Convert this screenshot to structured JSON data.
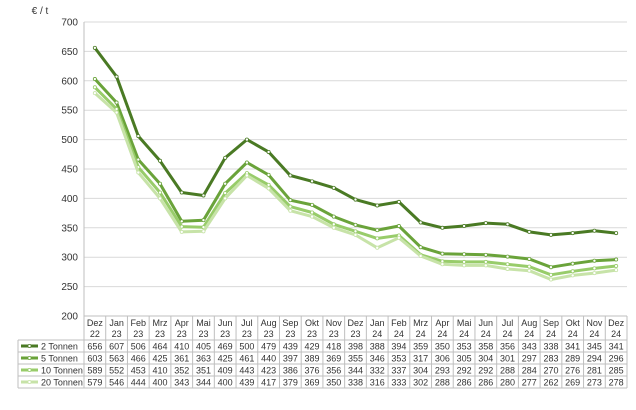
{
  "chart_data": {
    "type": "line",
    "ylabel": "€ / t",
    "ylim": [
      200,
      700
    ],
    "yticks": [
      200,
      250,
      300,
      350,
      400,
      450,
      500,
      550,
      600,
      650,
      700
    ],
    "grid": true,
    "legend": "bottom-table",
    "categories": [
      [
        "Dez",
        "22"
      ],
      [
        "Jan",
        "23"
      ],
      [
        "Feb",
        "23"
      ],
      [
        "Mrz",
        "23"
      ],
      [
        "Apr",
        "23"
      ],
      [
        "Mai",
        "23"
      ],
      [
        "Jun",
        "23"
      ],
      [
        "Jul",
        "23"
      ],
      [
        "Aug",
        "23"
      ],
      [
        "Sep",
        "23"
      ],
      [
        "Okt",
        "23"
      ],
      [
        "Nov",
        "23"
      ],
      [
        "Dez",
        "23"
      ],
      [
        "Jan",
        "24"
      ],
      [
        "Feb",
        "24"
      ],
      [
        "Mrz",
        "24"
      ],
      [
        "Apr",
        "24"
      ],
      [
        "Mai",
        "24"
      ],
      [
        "Jun",
        "24"
      ],
      [
        "Jul",
        "24"
      ],
      [
        "Aug",
        "24"
      ],
      [
        "Sep",
        "24"
      ],
      [
        "Okt",
        "24"
      ],
      [
        "Nov",
        "24"
      ],
      [
        "Dez",
        "24"
      ]
    ],
    "series": [
      {
        "name": "2 Tonnen",
        "color": "#4a7a24",
        "values": [
          656,
          607,
          506,
          464,
          410,
          405,
          469,
          500,
          479,
          439,
          429,
          418,
          398,
          388,
          394,
          359,
          350,
          353,
          358,
          356,
          343,
          338,
          341,
          345,
          341
        ]
      },
      {
        "name": "5 Tonnen",
        "color": "#6aa33a",
        "values": [
          603,
          563,
          466,
          425,
          361,
          363,
          425,
          461,
          440,
          397,
          389,
          369,
          355,
          346,
          353,
          317,
          306,
          305,
          304,
          301,
          297,
          283,
          289,
          294,
          296
        ]
      },
      {
        "name": "10 Tonnen",
        "color": "#98cc6a",
        "values": [
          589,
          552,
          453,
          410,
          352,
          351,
          409,
          443,
          423,
          386,
          376,
          356,
          344,
          332,
          337,
          304,
          293,
          292,
          292,
          288,
          284,
          270,
          276,
          281,
          285
        ]
      },
      {
        "name": "20 Tonnen",
        "color": "#c7e3a8",
        "values": [
          579,
          546,
          444,
          400,
          343,
          344,
          400,
          439,
          417,
          379,
          369,
          350,
          338,
          316,
          333,
          302,
          288,
          286,
          286,
          280,
          277,
          262,
          269,
          273,
          278
        ]
      }
    ]
  }
}
